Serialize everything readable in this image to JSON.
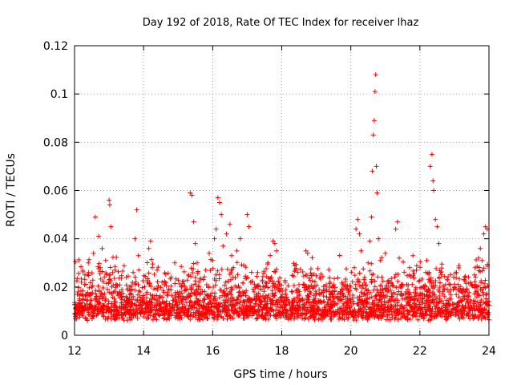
{
  "chart_data": {
    "type": "scatter",
    "title": "Day 192 of 2018, Rate Of TEC Index for receiver lhaz",
    "xlabel": "GPS time / hours",
    "ylabel": "ROTI / TECUs",
    "xlim": [
      12,
      24
    ],
    "ylim": [
      0,
      0.12
    ],
    "xticks": [
      12,
      14,
      16,
      18,
      20,
      22,
      24
    ],
    "xtick_labels": [
      "12",
      "14",
      "16",
      "18",
      "20",
      "22",
      "24"
    ],
    "yticks": [
      0,
      0.02,
      0.04,
      0.06,
      0.08,
      0.1,
      0.12
    ],
    "ytick_labels": [
      "0",
      "0.02",
      "0.04",
      "0.06",
      "0.08",
      "0.1",
      "0.12"
    ],
    "grid": true,
    "marker": "plus",
    "color": "#ff0000",
    "series": [
      {
        "name": "ROTI",
        "points": [
          [
            12.05,
            0.012
          ],
          [
            12.1,
            0.018
          ],
          [
            12.15,
            0.01
          ],
          [
            12.2,
            0.022
          ],
          [
            12.25,
            0.015
          ],
          [
            12.3,
            0.025
          ],
          [
            12.35,
            0.013
          ],
          [
            12.4,
            0.03
          ],
          [
            12.45,
            0.017
          ],
          [
            12.5,
            0.02
          ],
          [
            12.55,
            0.034
          ],
          [
            12.6,
            0.049
          ],
          [
            12.62,
            0.011
          ],
          [
            12.7,
            0.041
          ],
          [
            12.75,
            0.028
          ],
          [
            12.8,
            0.036
          ],
          [
            12.85,
            0.016
          ],
          [
            12.9,
            0.031
          ],
          [
            12.95,
            0.019
          ],
          [
            13.0,
            0.056
          ],
          [
            13.02,
            0.054
          ],
          [
            13.05,
            0.045
          ],
          [
            13.1,
            0.026
          ],
          [
            13.15,
            0.014
          ],
          [
            13.2,
            0.021
          ],
          [
            13.3,
            0.018
          ],
          [
            13.4,
            0.012
          ],
          [
            13.5,
            0.024
          ],
          [
            13.6,
            0.02
          ],
          [
            13.7,
            0.016
          ],
          [
            13.75,
            0.04
          ],
          [
            13.8,
            0.052
          ],
          [
            13.85,
            0.033
          ],
          [
            13.9,
            0.018
          ],
          [
            14.0,
            0.01
          ],
          [
            14.1,
            0.022
          ],
          [
            14.15,
            0.036
          ],
          [
            14.2,
            0.039
          ],
          [
            14.25,
            0.028
          ],
          [
            14.3,
            0.015
          ],
          [
            14.4,
            0.019
          ],
          [
            14.5,
            0.013
          ],
          [
            14.6,
            0.021
          ],
          [
            14.7,
            0.017
          ],
          [
            14.8,
            0.024
          ],
          [
            14.9,
            0.03
          ],
          [
            15.0,
            0.016
          ],
          [
            15.1,
            0.02
          ],
          [
            15.2,
            0.012
          ],
          [
            15.3,
            0.025
          ],
          [
            15.35,
            0.059
          ],
          [
            15.4,
            0.058
          ],
          [
            15.45,
            0.047
          ],
          [
            15.5,
            0.038
          ],
          [
            15.55,
            0.03
          ],
          [
            15.6,
            0.022
          ],
          [
            15.7,
            0.018
          ],
          [
            15.8,
            0.027
          ],
          [
            15.9,
            0.034
          ],
          [
            16.0,
            0.031
          ],
          [
            16.05,
            0.04
          ],
          [
            16.1,
            0.044
          ],
          [
            16.15,
            0.057
          ],
          [
            16.2,
            0.055
          ],
          [
            16.25,
            0.05
          ],
          [
            16.3,
            0.037
          ],
          [
            16.4,
            0.042
          ],
          [
            16.5,
            0.046
          ],
          [
            16.55,
            0.033
          ],
          [
            16.6,
            0.028
          ],
          [
            16.7,
            0.035
          ],
          [
            16.8,
            0.04
          ],
          [
            16.9,
            0.029
          ],
          [
            17.0,
            0.05
          ],
          [
            17.05,
            0.045
          ],
          [
            17.1,
            0.022
          ],
          [
            17.2,
            0.018
          ],
          [
            17.3,
            0.026
          ],
          [
            17.4,
            0.014
          ],
          [
            17.5,
            0.02
          ],
          [
            17.6,
            0.03
          ],
          [
            17.7,
            0.024
          ],
          [
            17.75,
            0.039
          ],
          [
            17.8,
            0.038
          ],
          [
            17.85,
            0.035
          ],
          [
            17.9,
            0.019
          ],
          [
            18.0,
            0.016
          ],
          [
            18.1,
            0.022
          ],
          [
            18.2,
            0.013
          ],
          [
            18.3,
            0.018
          ],
          [
            18.4,
            0.027
          ],
          [
            18.5,
            0.021
          ],
          [
            18.6,
            0.015
          ],
          [
            18.7,
            0.035
          ],
          [
            18.75,
            0.034
          ],
          [
            18.8,
            0.02
          ],
          [
            18.9,
            0.012
          ],
          [
            19.0,
            0.017
          ],
          [
            19.1,
            0.024
          ],
          [
            19.2,
            0.014
          ],
          [
            19.3,
            0.019
          ],
          [
            19.4,
            0.022
          ],
          [
            19.5,
            0.016
          ],
          [
            19.6,
            0.013
          ],
          [
            19.7,
            0.018
          ],
          [
            19.8,
            0.021
          ],
          [
            19.9,
            0.015
          ],
          [
            20.0,
            0.02
          ],
          [
            20.1,
            0.028
          ],
          [
            20.15,
            0.044
          ],
          [
            20.2,
            0.048
          ],
          [
            20.25,
            0.042
          ],
          [
            20.3,
            0.035
          ],
          [
            20.4,
            0.024
          ],
          [
            20.5,
            0.03
          ],
          [
            20.55,
            0.039
          ],
          [
            20.6,
            0.049
          ],
          [
            20.62,
            0.068
          ],
          [
            20.65,
            0.083
          ],
          [
            20.68,
            0.089
          ],
          [
            20.7,
            0.101
          ],
          [
            20.72,
            0.108
          ],
          [
            20.74,
            0.07
          ],
          [
            20.76,
            0.059
          ],
          [
            20.8,
            0.04
          ],
          [
            20.85,
            0.031
          ],
          [
            20.9,
            0.024
          ],
          [
            21.0,
            0.034
          ],
          [
            21.1,
            0.02
          ],
          [
            21.2,
            0.016
          ],
          [
            21.3,
            0.044
          ],
          [
            21.35,
            0.047
          ],
          [
            21.4,
            0.032
          ],
          [
            21.5,
            0.021
          ],
          [
            21.6,
            0.018
          ],
          [
            21.7,
            0.025
          ],
          [
            21.8,
            0.033
          ],
          [
            21.9,
            0.027
          ],
          [
            22.0,
            0.008
          ],
          [
            22.05,
            0.014
          ],
          [
            22.1,
            0.02
          ],
          [
            22.2,
            0.031
          ],
          [
            22.3,
            0.07
          ],
          [
            22.35,
            0.075
          ],
          [
            22.38,
            0.064
          ],
          [
            22.4,
            0.06
          ],
          [
            22.45,
            0.048
          ],
          [
            22.5,
            0.045
          ],
          [
            22.55,
            0.038
          ],
          [
            22.6,
            0.026
          ],
          [
            22.7,
            0.019
          ],
          [
            22.8,
            0.023
          ],
          [
            22.9,
            0.015
          ],
          [
            23.0,
            0.02
          ],
          [
            23.1,
            0.012
          ],
          [
            23.2,
            0.018
          ],
          [
            23.3,
            0.024
          ],
          [
            23.4,
            0.016
          ],
          [
            23.5,
            0.021
          ],
          [
            23.6,
            0.028
          ],
          [
            23.7,
            0.032
          ],
          [
            23.75,
            0.036
          ],
          [
            23.8,
            0.031
          ],
          [
            23.85,
            0.042
          ],
          [
            23.9,
            0.045
          ],
          [
            23.95,
            0.044
          ],
          [
            24.0,
            0.014
          ]
        ]
      }
    ]
  }
}
